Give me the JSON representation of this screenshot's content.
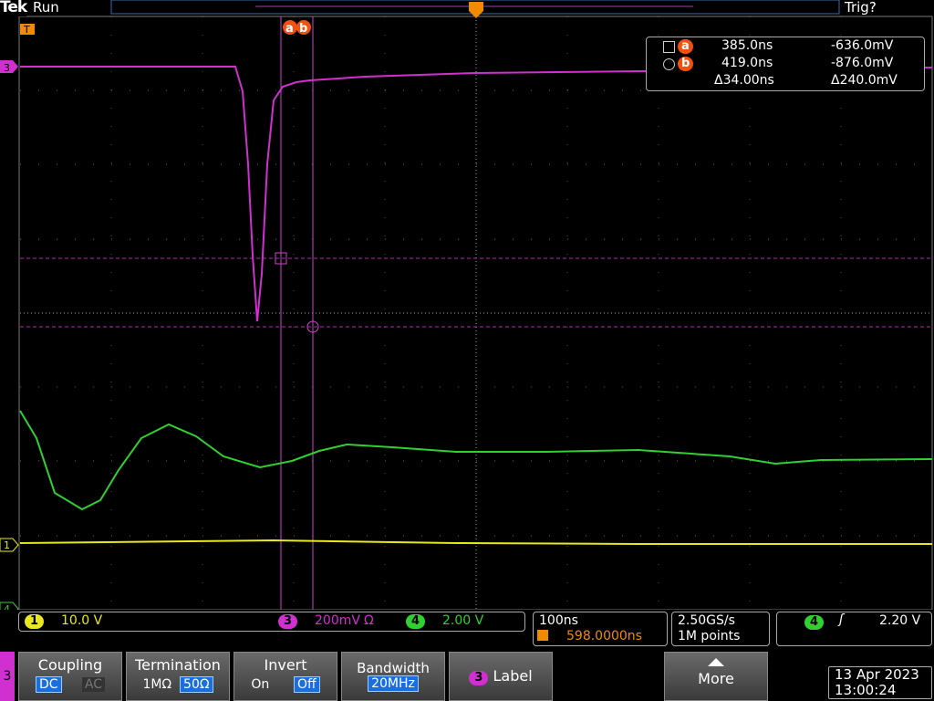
{
  "header": {
    "brand": "Tek",
    "status": "Run",
    "trigger_status": "Trig?"
  },
  "markers": {
    "trigger_pos": "T",
    "ch3": "3",
    "ch1": "1",
    "ch4": "4",
    "cursor_a": "a",
    "cursor_b": "b"
  },
  "cursor_readout": {
    "a_label": "a",
    "a_time": "385.0ns",
    "a_value": "-636.0mV",
    "b_label": "b",
    "b_time": "419.0ns",
    "b_value": "-876.0mV",
    "delta_time": "Δ34.00ns",
    "delta_value": "Δ240.0mV"
  },
  "status_bar": {
    "ch1": "1",
    "ch1_scale": "10.0 V",
    "ch3": "3",
    "ch3_scale": "200mV",
    "ch3_flag": "Ω",
    "ch4": "4",
    "ch4_scale": "2.00 V",
    "timebase": "100ns",
    "trigger_delay": "598.0000ns",
    "sample_rate": "2.50GS/s",
    "record_length": "1M points",
    "trigger_source": "4",
    "trigger_level": "2.20 V"
  },
  "menu": {
    "channel": "3",
    "coupling": {
      "title": "Coupling",
      "options": [
        "DC",
        "AC"
      ]
    },
    "termination": {
      "title": "Termination",
      "options": [
        "1MΩ",
        "50Ω"
      ]
    },
    "invert": {
      "title": "Invert",
      "options": [
        "On",
        "Off"
      ]
    },
    "bandwidth": {
      "title": "Bandwidth",
      "value": "20MHz"
    },
    "label": {
      "channel": "3",
      "title": "Label"
    },
    "more": "More"
  },
  "datetime": {
    "date": "13 Apr 2023",
    "time": "13:00:24"
  }
}
